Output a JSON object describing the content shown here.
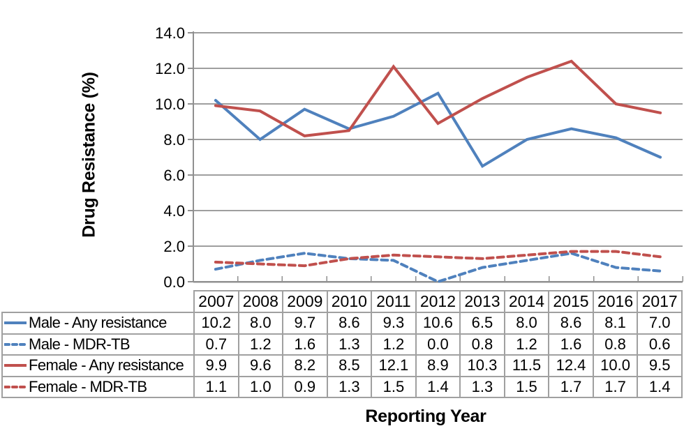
{
  "chart_data": {
    "type": "line",
    "title": "",
    "xlabel": "Reporting Year",
    "ylabel": "Drug Resistance (%)",
    "categories": [
      "2007",
      "2008",
      "2009",
      "2010",
      "2011",
      "2012",
      "2013",
      "2014",
      "2015",
      "2016",
      "2017"
    ],
    "series": [
      {
        "name": "Male - Any resistance",
        "color": "#4F81BD",
        "dash": false,
        "values": [
          10.2,
          8.0,
          9.7,
          8.6,
          9.3,
          10.6,
          6.5,
          8.0,
          8.6,
          8.1,
          7.0
        ]
      },
      {
        "name": "Male - MDR-TB",
        "color": "#4F81BD",
        "dash": true,
        "values": [
          0.7,
          1.2,
          1.6,
          1.3,
          1.2,
          0.0,
          0.8,
          1.2,
          1.6,
          0.8,
          0.6
        ]
      },
      {
        "name": "Female - Any resistance",
        "color": "#C0504D",
        "dash": false,
        "values": [
          9.9,
          9.6,
          8.2,
          8.5,
          12.1,
          8.9,
          10.3,
          11.5,
          12.4,
          10.0,
          9.5
        ]
      },
      {
        "name": "Female - MDR-TB",
        "color": "#C0504D",
        "dash": true,
        "values": [
          1.1,
          1.0,
          0.9,
          1.3,
          1.5,
          1.4,
          1.3,
          1.5,
          1.7,
          1.7,
          1.4
        ]
      }
    ],
    "ylim": [
      0,
      14
    ],
    "ytick_step": 2,
    "ytick_labels": [
      "0.0",
      "2.0",
      "4.0",
      "6.0",
      "8.0",
      "10.0",
      "12.0",
      "14.0"
    ],
    "grid": true,
    "legend_position": "data-table-left",
    "value_decimals": 1
  },
  "colors": {
    "gridline": "#9e9e9e",
    "axis": "#909090",
    "table_border": "#a0a0a0",
    "text": "#000000",
    "background": "#ffffff"
  }
}
